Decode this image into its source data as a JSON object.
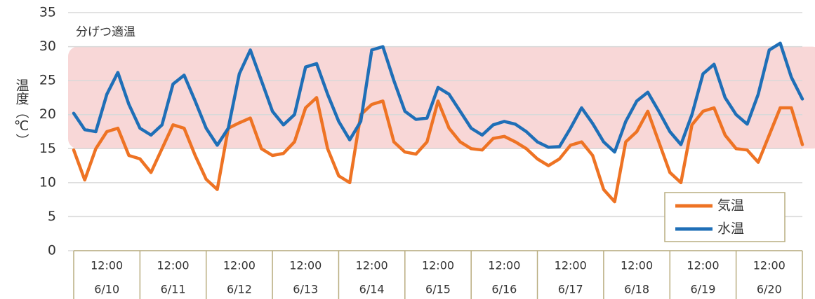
{
  "chart_data": {
    "type": "line",
    "y_label": "温度（℃）",
    "band": {
      "range": [
        15,
        30
      ],
      "label": "分げつ適温",
      "color": "#f8d7d7"
    },
    "x": [
      0,
      4,
      8,
      12,
      16,
      20,
      24,
      28,
      32,
      36,
      40,
      44,
      48,
      52,
      56,
      60,
      64,
      68,
      72,
      76,
      80,
      84,
      88,
      92,
      96,
      100,
      104,
      108,
      112,
      116,
      120,
      124,
      128,
      132,
      136,
      140,
      144,
      148,
      152,
      156,
      160,
      164,
      168,
      172,
      176,
      180,
      184,
      188,
      192,
      196,
      200,
      204,
      208,
      212,
      216,
      220,
      224,
      228,
      232,
      236,
      240,
      244,
      248,
      252,
      256,
      260,
      264
    ],
    "xlim": [
      0,
      264
    ],
    "xticks": [
      {
        "value": 12,
        "label": "12:00"
      },
      {
        "value": 36,
        "label": "12:00"
      },
      {
        "value": 60,
        "label": "12:00"
      },
      {
        "value": 84,
        "label": "12:00"
      },
      {
        "value": 108,
        "label": "12:00"
      },
      {
        "value": 132,
        "label": "12:00"
      },
      {
        "value": 156,
        "label": "12:00"
      },
      {
        "value": 180,
        "label": "12:00"
      },
      {
        "value": 204,
        "label": "12:00"
      },
      {
        "value": 228,
        "label": "12:00"
      },
      {
        "value": 252,
        "label": "12:00"
      }
    ],
    "dates": [
      "6/10",
      "6/11",
      "6/12",
      "6/13",
      "6/14",
      "6/15",
      "6/16",
      "6/17",
      "6/18",
      "6/19",
      "6/20"
    ],
    "ylim": [
      0,
      35
    ],
    "yticks": [
      0,
      5,
      10,
      15,
      20,
      25,
      30,
      35
    ],
    "grid": true,
    "series": [
      {
        "name": "気温",
        "color": "#ee7324",
        "values": [
          14.8,
          10.4,
          15,
          17.5,
          18,
          14,
          13.5,
          11.5,
          15,
          18.5,
          18,
          14,
          10.5,
          9,
          18,
          18.8,
          19.5,
          15,
          14,
          14.3,
          16,
          21,
          22.5,
          15,
          11,
          10,
          20,
          21.5,
          22,
          16,
          14.5,
          14.2,
          16,
          22,
          18,
          16,
          15,
          14.8,
          16.5,
          16.8,
          16,
          15,
          13.5,
          12.5,
          13.5,
          15.5,
          16,
          14,
          9,
          7.2,
          16,
          17.5,
          20.5,
          16,
          11.5,
          10,
          18.5,
          20.5,
          21,
          17,
          15,
          14.8,
          13,
          17,
          21,
          21,
          15.6
        ]
      },
      {
        "name": "水温",
        "color": "#1f6fb7",
        "values": [
          20.2,
          17.8,
          17.5,
          23,
          26.2,
          21.5,
          18,
          17,
          18.5,
          24.5,
          25.8,
          22,
          18,
          15.5,
          18,
          26,
          29.5,
          25,
          20.5,
          18.5,
          20,
          27,
          27.5,
          23,
          19,
          16.3,
          19,
          29.5,
          30,
          25,
          20.5,
          19.3,
          19.5,
          24,
          23,
          20.5,
          18,
          17,
          18.5,
          19,
          18.6,
          17.5,
          16,
          15.2,
          15.3,
          18,
          21,
          18.7,
          16,
          14.5,
          19,
          22,
          23.3,
          20.5,
          17.5,
          15.6,
          20,
          26,
          27.4,
          22.5,
          20,
          18.6,
          23,
          29.5,
          30.5,
          25.5,
          22.3
        ]
      }
    ]
  }
}
